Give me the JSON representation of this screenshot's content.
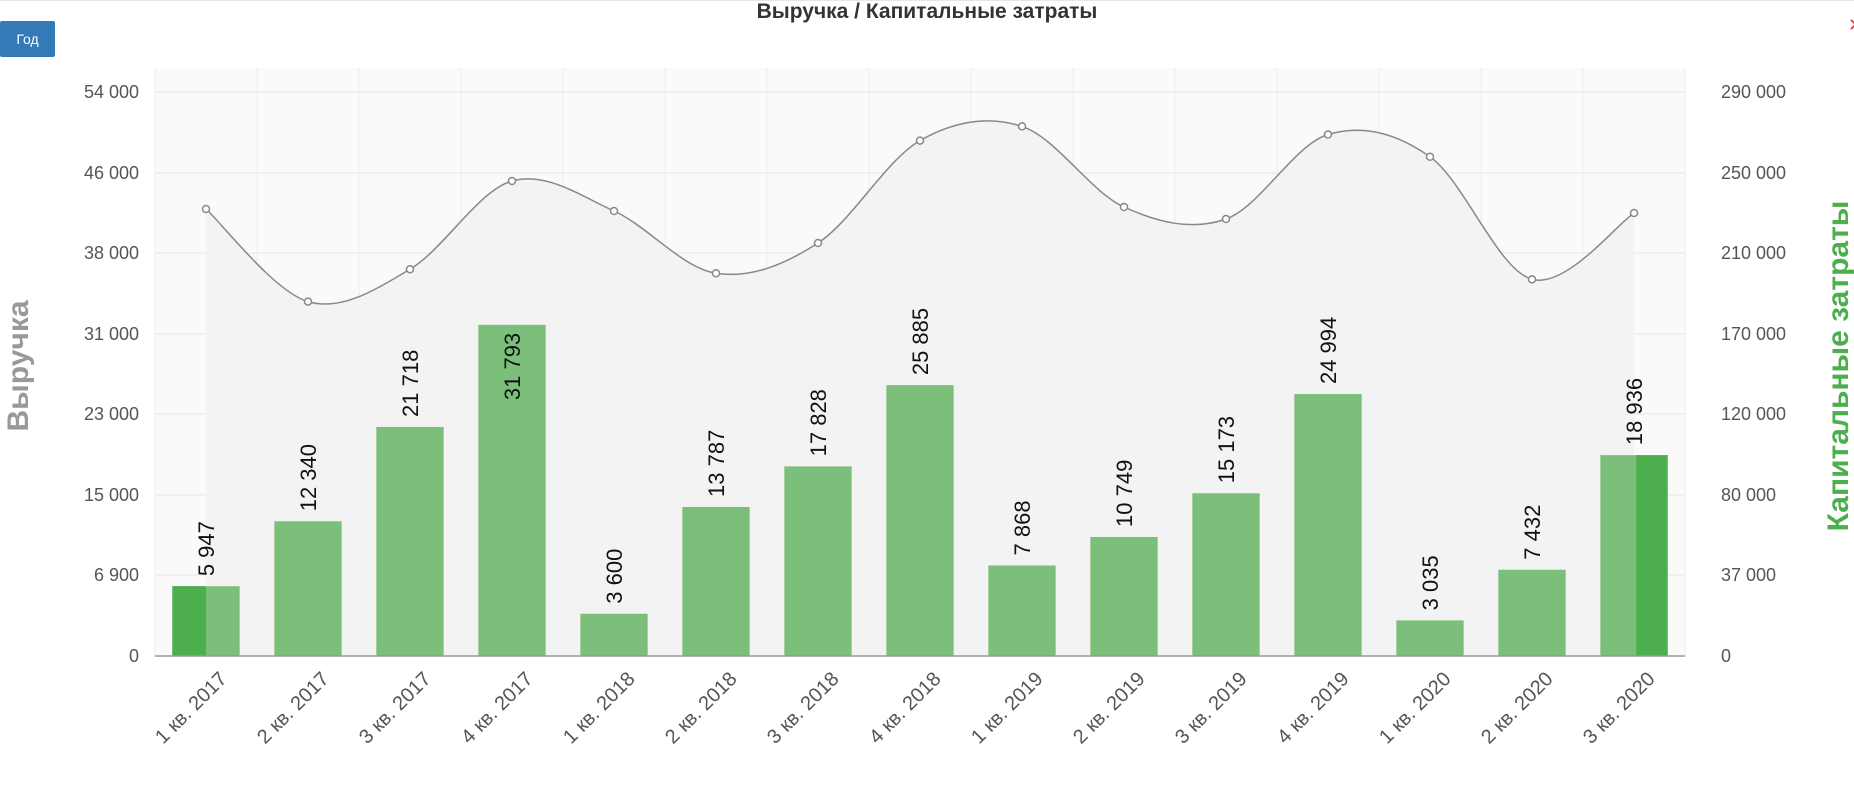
{
  "toolbar": {
    "year_button": "Год"
  },
  "colors": {
    "bar": "#7bbf7b",
    "bar_highlight": "#4cae4c",
    "line": "#888888",
    "area": "#f3f3f3",
    "button": "#337ab7"
  },
  "chart_data": {
    "type": "bar",
    "title": "Выручка / Капитальные затраты",
    "categories": [
      "1 кв. 2017",
      "2 кв. 2017",
      "3 кв. 2017",
      "4 кв. 2017",
      "1 кв. 2018",
      "2 кв. 2018",
      "3 кв. 2018",
      "4 кв. 2018",
      "1 кв. 2019",
      "2 кв. 2019",
      "3 кв. 2019",
      "4 кв. 2019",
      "1 кв. 2020",
      "2 кв. 2020",
      "3 кв. 2020"
    ],
    "ylabel": "Выручка",
    "y2label": "Капитальные затраты",
    "left_ticks": [
      "0",
      "6 900",
      "15 000",
      "23 000",
      "31 000",
      "38 000",
      "46 000",
      "54 000"
    ],
    "right_ticks": [
      "0",
      "37 000",
      "80 000",
      "120 000",
      "170 000",
      "210 000",
      "250 000",
      "290 000"
    ],
    "series": [
      {
        "type": "bar",
        "axis": "left",
        "values": [
          5947,
          12340,
          21718,
          31793,
          3600,
          13787,
          17828,
          25885,
          7868,
          10749,
          15173,
          24994,
          3035,
          7432,
          18936
        ],
        "labels": [
          "5 947",
          "12 340",
          "21 718",
          "31 793",
          "3 600",
          "13 787",
          "17 828",
          "25 885",
          "7 868",
          "10 749",
          "15 173",
          "24 994",
          "3 035",
          "7 432",
          "18 936"
        ]
      },
      {
        "type": "area-line",
        "axis": "right",
        "values": [
          232000,
          186000,
          202000,
          246000,
          231000,
          200000,
          215000,
          266000,
          273000,
          233000,
          227000,
          269000,
          258000,
          197000,
          230000
        ]
      }
    ],
    "grid": true,
    "legend": "none"
  }
}
